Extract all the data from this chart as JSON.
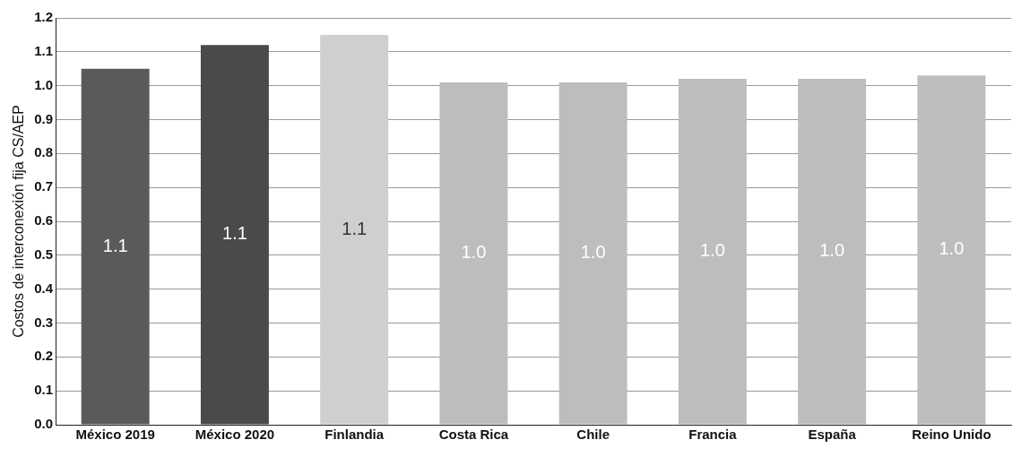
{
  "chart_data": {
    "type": "bar",
    "ylabel": "Costos de interconexión fija CS/AEP",
    "categories": [
      "México 2019",
      "México 2020",
      "Finlandia",
      "Costa Rica",
      "Chile",
      "Francia",
      "España",
      "Reino Unido"
    ],
    "values": [
      1.05,
      1.12,
      1.15,
      1.01,
      1.01,
      1.02,
      1.02,
      1.03
    ],
    "colors": [
      "#5a5a5a",
      "#4a4a4a",
      "#cfcfcf",
      "#bdbdbd",
      "#bdbdbd",
      "#bdbdbd",
      "#bdbdbd",
      "#bdbdbd"
    ],
    "value_labels": [
      "1.1",
      "1.1",
      "1.1",
      "1.0",
      "1.0",
      "1.0",
      "1.0",
      "1.0"
    ],
    "ylim": [
      0,
      1.2
    ],
    "yticks": [
      {
        "value": 0,
        "label": "0.0"
      },
      {
        "value": 0.1,
        "label": "0.1"
      },
      {
        "value": 0.2,
        "label": "0.2"
      },
      {
        "value": 0.3,
        "label": "0.3"
      },
      {
        "value": 0.4,
        "label": "0.4"
      },
      {
        "value": 0.5,
        "label": "0.5"
      },
      {
        "value": 0.6,
        "label": "0.6"
      },
      {
        "value": 0.7,
        "label": "0.7"
      },
      {
        "value": 0.8,
        "label": "0.8"
      },
      {
        "value": 0.9,
        "label": "0.9"
      },
      {
        "value": 1,
        "label": "1.0"
      },
      {
        "value": 1.1,
        "label": "1.1"
      },
      {
        "value": 1.2,
        "label": "1.2"
      }
    ],
    "grid": "y"
  }
}
